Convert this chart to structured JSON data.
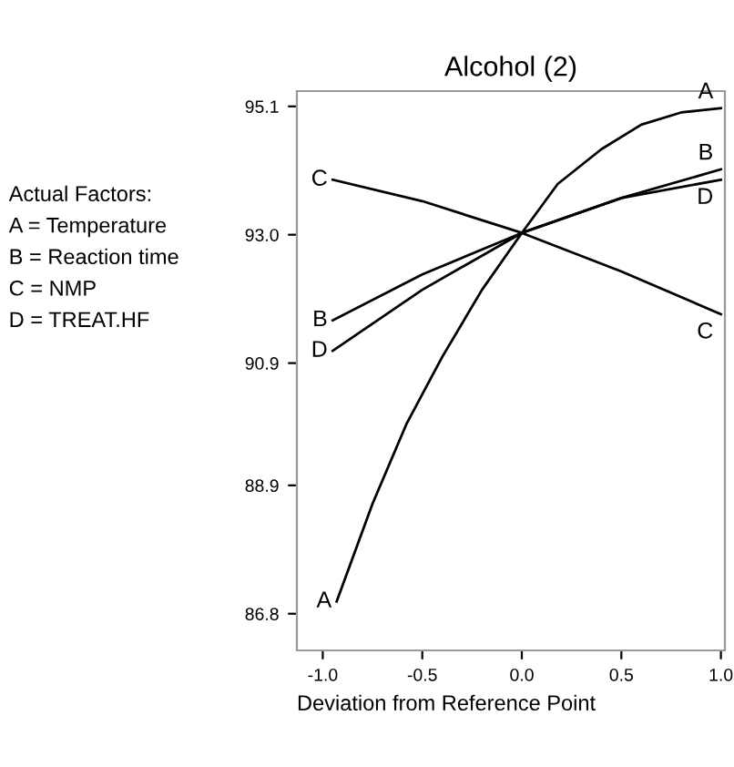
{
  "chart_data": {
    "type": "line",
    "title": "Alcohol (2)",
    "xlabel": "Deviation from Reference Point",
    "annotations": [
      "Actual Factors:",
      "A = Temperature",
      "B = Reaction time",
      "C = NMP",
      "D = TREAT.HF"
    ],
    "series": [
      {
        "name": "A",
        "color": "#000000",
        "x": [
          -0.93,
          -0.75,
          -0.58,
          -0.4,
          -0.2,
          0.0,
          0.18,
          0.4,
          0.6,
          0.8,
          1.0
        ],
        "values": [
          87.0,
          88.6,
          89.9,
          91.0,
          92.1,
          93.03,
          93.83,
          94.4,
          94.8,
          95.0,
          95.07
        ]
      },
      {
        "name": "B",
        "color": "#000000",
        "x": [
          -0.95,
          -0.5,
          0.0,
          0.5,
          1.0
        ],
        "values": [
          91.6,
          92.35,
          93.03,
          93.6,
          94.07
        ]
      },
      {
        "name": "C",
        "color": "#000000",
        "x": [
          -0.95,
          -0.5,
          0.0,
          0.5,
          1.0
        ],
        "values": [
          93.9,
          93.55,
          93.03,
          92.4,
          91.7
        ]
      },
      {
        "name": "D",
        "color": "#000000",
        "x": [
          -0.95,
          -0.5,
          0.0,
          0.5,
          1.0
        ],
        "values": [
          91.1,
          92.1,
          93.03,
          93.6,
          93.9
        ]
      }
    ],
    "xlim": [
      -1.13,
      1.02
    ],
    "ylim": [
      86.2,
      95.35
    ],
    "xticks": [
      {
        "value": -1.0,
        "label": "-1.0"
      },
      {
        "value": -0.5,
        "label": "-0.5"
      },
      {
        "value": 0.0,
        "label": "0.0"
      },
      {
        "value": 0.5,
        "label": "0.5"
      },
      {
        "value": 1.0,
        "label": "1.0"
      }
    ],
    "yticks": [
      86.8,
      88.9,
      90.9,
      {
        "value": 93.0,
        "label": "93.0"
      },
      95.1
    ],
    "marker": "none",
    "line_style": "solid",
    "grid": false,
    "legend": false
  }
}
